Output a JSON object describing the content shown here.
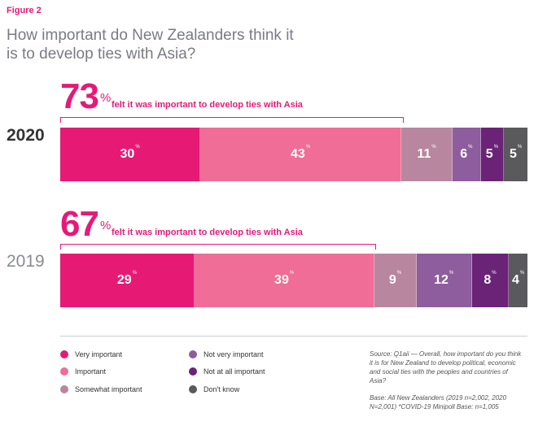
{
  "figure_label": "Figure 2",
  "title": "How important do New Zealanders think it is to develop ties with Asia?",
  "colors": {
    "very_important": "#e61a74",
    "important": "#ef6d96",
    "somewhat_important": "#b8869f",
    "not_very_important": "#8e5d9d",
    "not_at_all_important": "#6a2377",
    "dont_know": "#5a5a5d",
    "accent": "#e6197a"
  },
  "highlights": [
    {
      "year": "2020",
      "pct": "73",
      "pct_suffix": "%",
      "text": "felt it was important to develop ties with Asia"
    },
    {
      "year": "2019",
      "pct": "67",
      "pct_suffix": "%",
      "text": "felt it was important to develop ties with Asia"
    }
  ],
  "chart_data": {
    "type": "bar",
    "orientation": "horizontal-stacked",
    "categories": [
      "2020",
      "2019"
    ],
    "value_suffix": "%",
    "series": [
      {
        "name": "Very important",
        "values": [
          30,
          29
        ]
      },
      {
        "name": "Important",
        "values": [
          43,
          39
        ]
      },
      {
        "name": "Somewhat important",
        "values": [
          11,
          9
        ]
      },
      {
        "name": "Not very important",
        "values": [
          6,
          12
        ]
      },
      {
        "name": "Not at all important",
        "values": [
          5,
          8
        ]
      },
      {
        "name": "Don't know",
        "values": [
          5,
          4
        ]
      }
    ],
    "legend_position": "bottom-left"
  },
  "legend": [
    {
      "label": "Very important",
      "color_key": "very_important"
    },
    {
      "label": "Important",
      "color_key": "important"
    },
    {
      "label": "Somewhat important",
      "color_key": "somewhat_important"
    },
    {
      "label": "Not very important",
      "color_key": "not_very_important"
    },
    {
      "label": "Not at all important",
      "color_key": "not_at_all_important"
    },
    {
      "label": "Don't know",
      "color_key": "dont_know"
    }
  ],
  "source": "Source: Q1aii — Overall, how important do you think it is for New Zealand to develop political, economic and social ties with the peoples and countries of Asia?",
  "base": "Base: All New Zealanders (2019 n=2,002, 2020 N=2,001) *COVID-19 Minipoll Base: n=1,005"
}
